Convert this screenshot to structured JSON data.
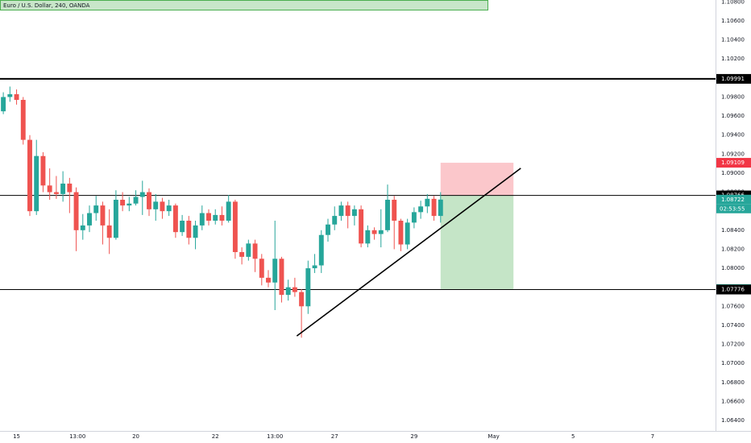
{
  "chart_data": {
    "type": "candlestick",
    "title": "Euro / U.S. Dollar, 240, OANDA",
    "up_color": "#26a69a",
    "down_color": "#ef5350",
    "open": [
      1.0965,
      1.098,
      1.0983,
      1.0977,
      1.0935,
      1.086,
      1.0918,
      1.0887,
      1.088,
      1.0878,
      1.0889,
      1.088,
      1.084,
      1.0845,
      1.0858,
      1.0866,
      1.0845,
      1.0832,
      1.0872,
      1.0866,
      1.0868,
      1.0875,
      1.088,
      1.0862,
      1.087,
      1.086,
      1.0866,
      1.0838,
      1.085,
      1.0832,
      1.0845,
      1.0858,
      1.085,
      1.0856,
      1.085,
      1.087,
      1.0817,
      1.0812,
      1.0826,
      1.081,
      1.079,
      1.0785,
      1.081,
      1.0772,
      1.078,
      1.0775,
      1.076,
      1.08,
      1.0803,
      1.0835,
      1.0846,
      1.0855,
      1.0866,
      1.0855,
      1.0862,
      1.0826,
      1.084,
      1.0836,
      1.084,
      1.0872,
      1.085,
      1.0825,
      1.0848,
      1.0859,
      1.0865,
      1.0873,
      1.0855
    ],
    "high": [
      1.0985,
      1.0991,
      1.0988,
      1.098,
      1.094,
      1.0935,
      1.0922,
      1.0905,
      1.0897,
      1.0902,
      1.0895,
      1.0885,
      1.0857,
      1.0866,
      1.0876,
      1.087,
      1.0862,
      1.0882,
      1.088,
      1.0875,
      1.0882,
      1.0892,
      1.0884,
      1.0878,
      1.0874,
      1.0872,
      1.0868,
      1.0856,
      1.0855,
      1.085,
      1.0866,
      1.0862,
      1.0862,
      1.0865,
      1.0877,
      1.0872,
      1.0822,
      1.083,
      1.083,
      1.0815,
      1.0798,
      1.085,
      1.0812,
      1.0788,
      1.079,
      1.0778,
      1.0808,
      1.0815,
      1.084,
      1.0852,
      1.0865,
      1.087,
      1.087,
      1.0866,
      1.0866,
      1.0845,
      1.0843,
      1.0862,
      1.0888,
      1.0876,
      1.0852,
      1.0852,
      1.0864,
      1.0871,
      1.0878,
      1.0876,
      1.088
    ],
    "low": [
      1.0962,
      1.0975,
      1.0972,
      1.093,
      1.0855,
      1.0856,
      1.088,
      1.0872,
      1.0873,
      1.087,
      1.0858,
      1.0818,
      1.083,
      1.0838,
      1.085,
      1.0825,
      1.0815,
      1.083,
      1.086,
      1.086,
      1.0866,
      1.0856,
      1.0855,
      1.085,
      1.0852,
      1.0855,
      1.0832,
      1.0834,
      1.0825,
      1.082,
      1.084,
      1.0845,
      1.0846,
      1.0845,
      1.0848,
      1.081,
      1.0804,
      1.0808,
      1.0796,
      1.0782,
      1.078,
      1.0756,
      1.0764,
      1.0766,
      1.077,
      1.0727,
      1.0752,
      1.0795,
      1.0795,
      1.0828,
      1.084,
      1.085,
      1.0842,
      1.0845,
      1.0822,
      1.0822,
      1.083,
      1.0822,
      1.0838,
      1.082,
      1.0818,
      1.082,
      1.0842,
      1.0852,
      1.0858,
      1.085,
      1.0848
    ],
    "close": [
      1.098,
      1.0983,
      1.0977,
      1.0935,
      1.086,
      1.0918,
      1.0887,
      1.088,
      1.0878,
      1.0889,
      1.088,
      1.084,
      1.0845,
      1.0858,
      1.0866,
      1.0845,
      1.0832,
      1.0872,
      1.0866,
      1.0868,
      1.0875,
      1.088,
      1.0862,
      1.087,
      1.086,
      1.0866,
      1.0838,
      1.085,
      1.0832,
      1.0845,
      1.0858,
      1.085,
      1.0856,
      1.085,
      1.087,
      1.0817,
      1.0812,
      1.0826,
      1.081,
      1.079,
      1.0785,
      1.081,
      1.0772,
      1.078,
      1.0775,
      1.076,
      1.08,
      1.0803,
      1.0835,
      1.0846,
      1.0855,
      1.0866,
      1.0855,
      1.0862,
      1.0826,
      1.084,
      1.0836,
      1.084,
      1.0872,
      1.085,
      1.0825,
      1.0848,
      1.0859,
      1.0865,
      1.0873,
      1.0855,
      1.08722
    ],
    "xlim": [
      -0.5,
      107.5
    ],
    "xticks": [
      {
        "value": 2,
        "label": "15"
      },
      {
        "value": 11.2,
        "label": "13:00"
      },
      {
        "value": 20,
        "label": "20"
      },
      {
        "value": 32,
        "label": "22"
      },
      {
        "value": 41,
        "label": "13:00"
      },
      {
        "value": 50,
        "label": "27"
      },
      {
        "value": 62,
        "label": "29"
      },
      {
        "value": 74,
        "label": "May"
      },
      {
        "value": 86,
        "label": "5"
      },
      {
        "value": 98,
        "label": "7"
      }
    ],
    "ylim": [
      1.0629,
      1.1082
    ],
    "yticks": [
      {
        "value": 1.108,
        "label": "1.10800"
      },
      {
        "value": 1.106,
        "label": "1.10600"
      },
      {
        "value": 1.104,
        "label": "1.10400"
      },
      {
        "value": 1.102,
        "label": "1.10200"
      },
      {
        "value": 1.1,
        "label": "1.10000"
      },
      {
        "value": 1.098,
        "label": "1.09800"
      },
      {
        "value": 1.096,
        "label": "1.09600"
      },
      {
        "value": 1.094,
        "label": "1.09400"
      },
      {
        "value": 1.092,
        "label": "1.09200"
      },
      {
        "value": 1.09,
        "label": "1.09000"
      },
      {
        "value": 1.088,
        "label": "1.08800"
      },
      {
        "value": 1.086,
        "label": "1.08600"
      },
      {
        "value": 1.084,
        "label": "1.08400"
      },
      {
        "value": 1.082,
        "label": "1.08200"
      },
      {
        "value": 1.08,
        "label": "1.08000"
      },
      {
        "value": 1.078,
        "label": "1.07800"
      },
      {
        "value": 1.076,
        "label": "1.07600"
      },
      {
        "value": 1.074,
        "label": "1.07400"
      },
      {
        "value": 1.072,
        "label": "1.07200"
      },
      {
        "value": 1.07,
        "label": "1.07000"
      },
      {
        "value": 1.068,
        "label": "1.06800"
      },
      {
        "value": 1.066,
        "label": "1.06600"
      },
      {
        "value": 1.064,
        "label": "1.06400"
      }
    ],
    "grid": false,
    "hlines": [
      {
        "value": 1.09991,
        "color": "#000000",
        "width": 2
      },
      {
        "value": 1.08766,
        "color": "#000000",
        "width": 1
      },
      {
        "value": 1.07776,
        "color": "#000000",
        "width": 1
      }
    ],
    "price_labels": [
      {
        "value": 1.09991,
        "color": "#000000"
      },
      {
        "value": 1.09109,
        "color": "#f23645"
      },
      {
        "value": 1.08766,
        "color": "#000000"
      },
      {
        "value": 1.08722,
        "color": "#26a69a"
      },
      {
        "value": 1.07781,
        "color": "#089981"
      },
      {
        "value": 1.07776,
        "color": "#000000"
      }
    ],
    "countdown": "02:53:55",
    "position": {
      "entry": 1.08766,
      "stop": 1.09109,
      "target": 1.07781,
      "x_start": 66,
      "x_end": 77
    },
    "trendline": {
      "x": [
        44.3,
        78.1
      ],
      "y": [
        1.07288,
        1.09051
      ]
    }
  }
}
